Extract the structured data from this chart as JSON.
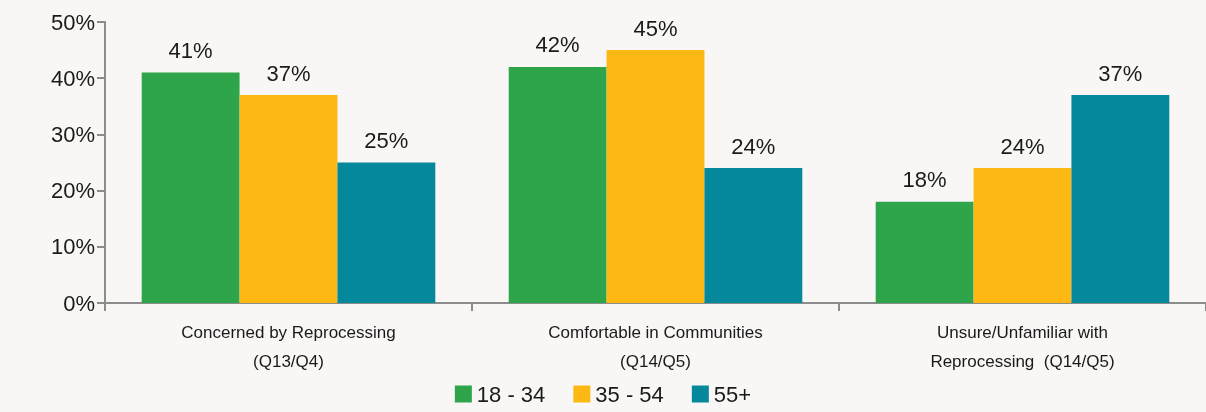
{
  "chart_data": {
    "type": "bar",
    "categories": [
      "Concerned by Reprocessing\n(Q13/Q4)",
      "Comfortable in Communities\n(Q14/Q5)",
      "Unsure/Unfamiliar with\nReprocessing  (Q14/Q5)"
    ],
    "series": [
      {
        "name": "18 - 34",
        "color": "#2ea44b",
        "values": [
          41,
          42,
          18
        ],
        "value_labels": [
          "41%",
          "42%",
          "18%"
        ]
      },
      {
        "name": "35 - 54",
        "color": "#fdb813",
        "values": [
          37,
          45,
          24
        ],
        "value_labels": [
          "37%",
          "45%",
          "24%"
        ]
      },
      {
        "name": "55+",
        "color": "#05889b",
        "values": [
          25,
          24,
          37
        ],
        "value_labels": [
          "25%",
          "24%",
          "37%"
        ]
      }
    ],
    "ylim": [
      0,
      50
    ],
    "yticks": [
      {
        "value": 0,
        "label": "0%"
      },
      {
        "value": 10,
        "label": "10%"
      },
      {
        "value": 20,
        "label": "20%"
      },
      {
        "value": 30,
        "label": "30%"
      },
      {
        "value": 40,
        "label": "40%"
      },
      {
        "value": 50,
        "label": "50%"
      }
    ],
    "grid": false,
    "legend": "bottom"
  }
}
